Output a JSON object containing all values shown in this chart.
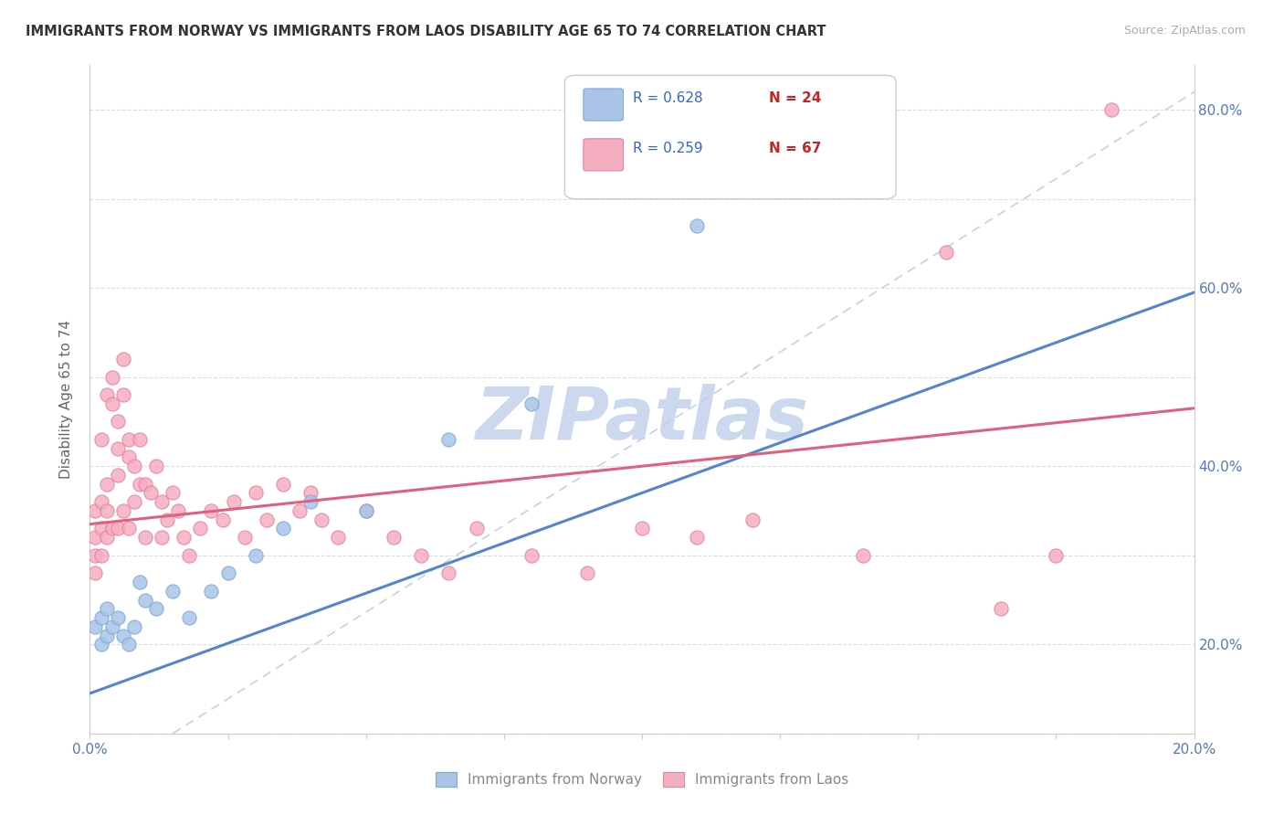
{
  "title": "IMMIGRANTS FROM NORWAY VS IMMIGRANTS FROM LAOS DISABILITY AGE 65 TO 74 CORRELATION CHART",
  "source": "Source: ZipAtlas.com",
  "ylabel": "Disability Age 65 to 74",
  "xlim": [
    0.0,
    0.2
  ],
  "ylim": [
    0.1,
    0.85
  ],
  "norway_color": "#aac4e8",
  "laos_color": "#f5aec0",
  "norway_edge_color": "#7aaad8",
  "laos_edge_color": "#e880a0",
  "norway_line_color": "#5585cc",
  "laos_line_color": "#e06080",
  "ref_line_color": "#bbccee",
  "norway_R": 0.628,
  "norway_N": 24,
  "laos_R": 0.259,
  "laos_N": 67,
  "legend_R_color": "#3366cc",
  "legend_N_color": "#cc2222",
  "watermark": "ZIPatlas",
  "watermark_color": "#ccd8ee",
  "norway_x": [
    0.001,
    0.002,
    0.002,
    0.003,
    0.003,
    0.004,
    0.005,
    0.006,
    0.007,
    0.008,
    0.009,
    0.01,
    0.012,
    0.015,
    0.018,
    0.022,
    0.025,
    0.03,
    0.035,
    0.04,
    0.05,
    0.065,
    0.08,
    0.11
  ],
  "norway_y": [
    0.22,
    0.23,
    0.2,
    0.21,
    0.24,
    0.22,
    0.23,
    0.21,
    0.2,
    0.22,
    0.27,
    0.25,
    0.24,
    0.26,
    0.23,
    0.26,
    0.28,
    0.3,
    0.33,
    0.36,
    0.35,
    0.43,
    0.47,
    0.67
  ],
  "laos_x": [
    0.001,
    0.001,
    0.001,
    0.001,
    0.002,
    0.002,
    0.002,
    0.002,
    0.003,
    0.003,
    0.003,
    0.003,
    0.004,
    0.004,
    0.004,
    0.005,
    0.005,
    0.005,
    0.005,
    0.006,
    0.006,
    0.006,
    0.007,
    0.007,
    0.007,
    0.008,
    0.008,
    0.009,
    0.009,
    0.01,
    0.01,
    0.011,
    0.012,
    0.013,
    0.013,
    0.014,
    0.015,
    0.016,
    0.017,
    0.018,
    0.02,
    0.022,
    0.024,
    0.026,
    0.028,
    0.03,
    0.032,
    0.035,
    0.038,
    0.04,
    0.042,
    0.045,
    0.05,
    0.055,
    0.06,
    0.065,
    0.07,
    0.08,
    0.09,
    0.1,
    0.11,
    0.12,
    0.14,
    0.155,
    0.165,
    0.175,
    0.185
  ],
  "laos_y": [
    0.32,
    0.35,
    0.3,
    0.28,
    0.36,
    0.33,
    0.3,
    0.43,
    0.38,
    0.35,
    0.32,
    0.48,
    0.5,
    0.47,
    0.33,
    0.45,
    0.42,
    0.39,
    0.33,
    0.52,
    0.48,
    0.35,
    0.43,
    0.41,
    0.33,
    0.4,
    0.36,
    0.43,
    0.38,
    0.38,
    0.32,
    0.37,
    0.4,
    0.36,
    0.32,
    0.34,
    0.37,
    0.35,
    0.32,
    0.3,
    0.33,
    0.35,
    0.34,
    0.36,
    0.32,
    0.37,
    0.34,
    0.38,
    0.35,
    0.37,
    0.34,
    0.32,
    0.35,
    0.32,
    0.3,
    0.28,
    0.33,
    0.3,
    0.28,
    0.33,
    0.32,
    0.34,
    0.3,
    0.64,
    0.24,
    0.3,
    0.8
  ],
  "norway_line_x": [
    0.0,
    0.2
  ],
  "norway_line_y": [
    0.145,
    0.595
  ],
  "laos_line_x": [
    0.0,
    0.2
  ],
  "laos_line_y": [
    0.335,
    0.465
  ],
  "ref_line_x": [
    0.015,
    0.2
  ],
  "ref_line_y": [
    0.1,
    0.82
  ]
}
